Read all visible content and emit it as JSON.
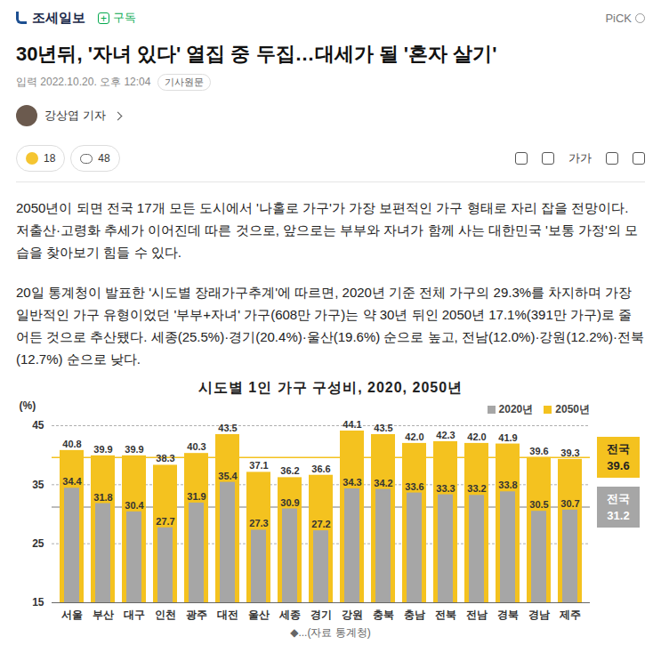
{
  "header": {
    "logo": "조세일보",
    "subscribe": "구독",
    "badge": "PiCK"
  },
  "headline": "30년뒤, '자녀 있다' 열집 중 두집…대세가 될 '혼자 살기'",
  "meta": {
    "input_label": "입력",
    "datetime": "2022.10.20. 오후 12:04",
    "original_link": "기사원문"
  },
  "reporter": "강상엽 기자",
  "reactions": {
    "likes": 18,
    "comments": 48
  },
  "font_button": "가가",
  "paragraphs": [
    "2050년이 되면 전국 17개 모든 도시에서 '나홀로 가구'가 가장 보편적인 가구 형태로 자리 잡을 전망이다. 저출산·고령화 추세가 이어진데 따른 것으로, 앞으로는 부부와 자녀가 함께 사는 대한민국 '보통 가정'의 모습을 찾아보기 힘들 수 있다.",
    "20일 통계청이 발표한 '시도별 장래가구추계'에 따르면, 2020년 기준 전체 가구의 29.3%를 차지하며 가장 일반적인 가구 유형이었던 '부부+자녀' 가구(608만 가구)는 약 30년 뒤인 2050년 17.1%(391만 가구)로 줄어든 것으로 추산됐다. 세종(25.5%)·경기(20.4%)·울산(19.6%) 순으로 높고, 전남(12.0%)·강원(12.2%)·전북(12.7%) 순으로 낮다."
  ],
  "chart_data": {
    "type": "bar",
    "title": "시도별 1인 가구 구성비, 2020, 2050년",
    "y_label": "(%)",
    "categories": [
      "서울",
      "부산",
      "대구",
      "인천",
      "광주",
      "대전",
      "울산",
      "세종",
      "경기",
      "강원",
      "충북",
      "충남",
      "전북",
      "전남",
      "경북",
      "경남",
      "제주"
    ],
    "series": [
      {
        "name": "2020년",
        "color": "#a6a6a6",
        "values": [
          34.4,
          31.8,
          30.4,
          27.7,
          31.9,
          35.4,
          27.3,
          30.9,
          27.2,
          34.3,
          34.2,
          33.6,
          33.3,
          33.2,
          33.8,
          30.5,
          30.7
        ],
        "value_labels": [
          "34.4",
          "31.8",
          "30.4",
          "27.7",
          "31.9",
          "35.4",
          "27.3",
          "30.9",
          "27.2",
          "34.3",
          "34.2",
          "33.6",
          "33.3",
          "33.2",
          "33.8",
          "30.5",
          "30.7"
        ]
      },
      {
        "name": "2050년",
        "color": "#f4c21f",
        "values": [
          40.8,
          39.9,
          39.9,
          38.3,
          40.3,
          43.5,
          37.1,
          36.2,
          36.6,
          44.1,
          43.5,
          42.0,
          42.3,
          42.0,
          41.9,
          39.6,
          39.3
        ],
        "value_labels": [
          "40.8",
          "39.9",
          "39.9",
          "38.3",
          "40.3",
          "43.5",
          "37.1",
          "36.2",
          "36.6",
          "44.1",
          "43.5",
          "42.0",
          "42.3",
          "42.0",
          "41.9",
          "39.6",
          "39.3"
        ]
      }
    ],
    "reference_lines": [
      {
        "label": "전국",
        "value": 39.6,
        "value_label": "39.6",
        "color": "#f4c21f"
      },
      {
        "label": "전국",
        "value": 31.2,
        "value_label": "31.2",
        "color": "#a6a6a6"
      }
    ],
    "ylim": [
      15,
      45
    ],
    "yticks": [
      15,
      25,
      35,
      45
    ],
    "grid": true,
    "legend": "top-right",
    "data_labels": true
  },
  "caption": "◆...(자료 통계청)"
}
